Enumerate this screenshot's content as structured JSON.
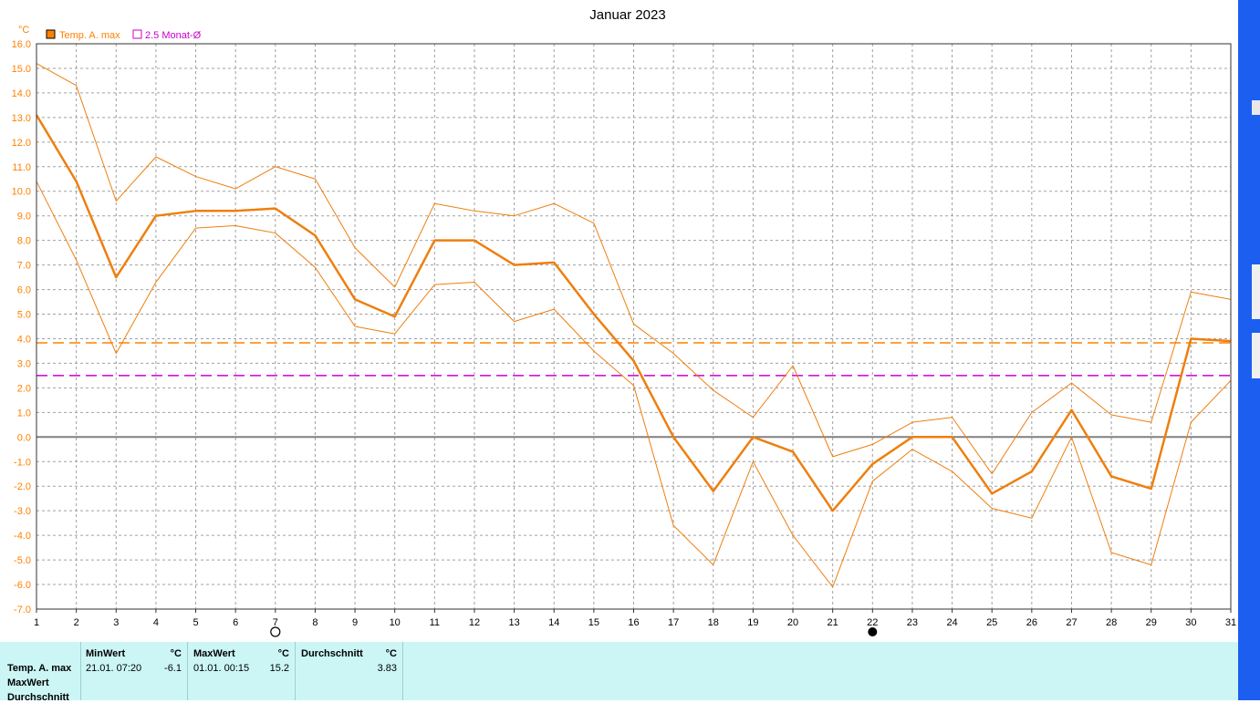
{
  "chart_data": {
    "type": "line",
    "title": "Januar 2023",
    "ylabel": "°C",
    "ylim": [
      -7,
      16
    ],
    "yticks": [
      "16.0",
      "15.0",
      "14.0",
      "13.0",
      "12.0",
      "11.0",
      "10.0",
      "9.0",
      "8.0",
      "7.0",
      "6.0",
      "5.0",
      "4.0",
      "3.0",
      "2.0",
      "1.0",
      "0.0",
      "-1.0",
      "-2.0",
      "-3.0",
      "-4.0",
      "-5.0",
      "-6.0",
      "-7.0"
    ],
    "x": [
      1,
      2,
      3,
      4,
      5,
      6,
      7,
      8,
      9,
      10,
      11,
      12,
      13,
      14,
      15,
      16,
      17,
      18,
      19,
      20,
      21,
      22,
      23,
      24,
      25,
      26,
      27,
      28,
      29,
      30,
      31
    ],
    "xticks": [
      "1",
      "2",
      "3",
      "4",
      "5",
      "6",
      "7",
      "8",
      "9",
      "10",
      "11",
      "12",
      "13",
      "14",
      "15",
      "16",
      "17",
      "18",
      "19",
      "20",
      "21",
      "22",
      "23",
      "24",
      "25",
      "26",
      "27",
      "28",
      "29",
      "30",
      "31"
    ],
    "grid": true,
    "legend": [
      {
        "label": "Temp. A. max",
        "color": "#ff8000"
      },
      {
        "label": "2.5 Monat-Ø",
        "color": "#cc00cc"
      }
    ],
    "series": [
      {
        "name": "Temp. A. max",
        "role": "main",
        "color": "#ee7f0e",
        "values": [
          13.1,
          10.4,
          6.5,
          9.0,
          9.2,
          9.2,
          9.3,
          8.2,
          5.6,
          4.9,
          8.0,
          8.0,
          7.0,
          7.1,
          5.0,
          3.1,
          0.0,
          -2.2,
          0.0,
          -0.6,
          -3.0,
          -1.1,
          0.0,
          0.0,
          -2.3,
          -1.4,
          1.1,
          -1.6,
          -2.1,
          4.0,
          3.9
        ]
      },
      {
        "name": "upper",
        "role": "band",
        "color": "#ee7f0e",
        "values": [
          15.2,
          14.3,
          9.6,
          11.4,
          10.6,
          10.1,
          11.0,
          10.5,
          7.7,
          6.1,
          9.5,
          9.2,
          9.0,
          9.5,
          8.7,
          4.6,
          3.4,
          1.9,
          0.8,
          2.9,
          -0.8,
          -0.3,
          0.6,
          0.8,
          -1.5,
          1.0,
          2.2,
          0.9,
          0.6,
          5.9,
          5.6
        ]
      },
      {
        "name": "lower",
        "role": "band",
        "color": "#ee7f0e",
        "values": [
          10.4,
          7.2,
          3.4,
          6.3,
          8.5,
          8.6,
          8.3,
          6.9,
          4.5,
          4.2,
          6.2,
          6.3,
          4.7,
          5.2,
          3.5,
          2.1,
          -3.6,
          -5.2,
          -1.0,
          -4.0,
          -6.1,
          -1.8,
          -0.5,
          -1.4,
          -2.9,
          -3.3,
          0.0,
          -4.7,
          -5.2,
          0.6,
          2.3
        ]
      }
    ],
    "reference_lines": [
      {
        "value": 3.83,
        "color": "#ff8000"
      },
      {
        "value": 2.5,
        "color": "#cc00cc"
      }
    ],
    "moon_markers": [
      {
        "day": 7,
        "phase": "full"
      },
      {
        "day": 22,
        "phase": "new"
      }
    ]
  },
  "stats": {
    "row_labels": [
      "Temp. A. max",
      "MaxWert",
      "Durchschnitt"
    ],
    "min_header": "MinWert",
    "min_unit": "°C",
    "min_date": "21.01.  07:20",
    "min_value": "-6.1",
    "max_header": "MaxWert",
    "max_unit": "°C",
    "max_date": "01.01.  00:15",
    "max_value": "15.2",
    "avg_header": "Durchschnitt",
    "avg_unit": "°C",
    "avg_value": "3.83"
  }
}
